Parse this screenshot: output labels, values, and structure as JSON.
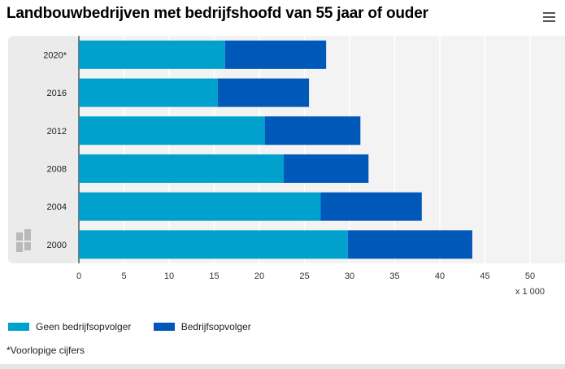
{
  "header": {
    "title": "Landbouwbedrijven met bedrijfshoofd van 55 jaar of ouder",
    "menu_icon": "hamburger-menu-icon"
  },
  "chart_data": {
    "type": "bar",
    "orientation": "horizontal",
    "stacked": true,
    "title": "Landbouwbedrijven met bedrijfshoofd van 55 jaar of ouder",
    "categories": [
      "2020*",
      "2016",
      "2012",
      "2008",
      "2004",
      "2000"
    ],
    "series": [
      {
        "name": "Geen bedrijfsopvolger",
        "color": "#00a1cd",
        "values": [
          16.2,
          15.4,
          20.6,
          22.7,
          26.8,
          29.8
        ]
      },
      {
        "name": "Bedrijfsopvolger",
        "color": "#0058b8",
        "values": [
          11.2,
          10.1,
          10.6,
          9.4,
          11.2,
          13.8
        ]
      }
    ],
    "xlim": [
      0,
      50
    ],
    "xticks": [
      "0",
      "5",
      "10",
      "15",
      "20",
      "25",
      "30",
      "35",
      "40",
      "45",
      "50"
    ],
    "unit_label": "x 1 000",
    "grid": true,
    "legend_position": "bottom-left",
    "logo_icon": "cbs-logo-icon"
  },
  "legend": {
    "items": [
      {
        "label": "Geen bedrijfsopvolger",
        "color": "#00a1cd"
      },
      {
        "label": "Bedrijfsopvolger",
        "color": "#0058b8"
      }
    ]
  },
  "footnote": "*Voorlopige cijfers"
}
